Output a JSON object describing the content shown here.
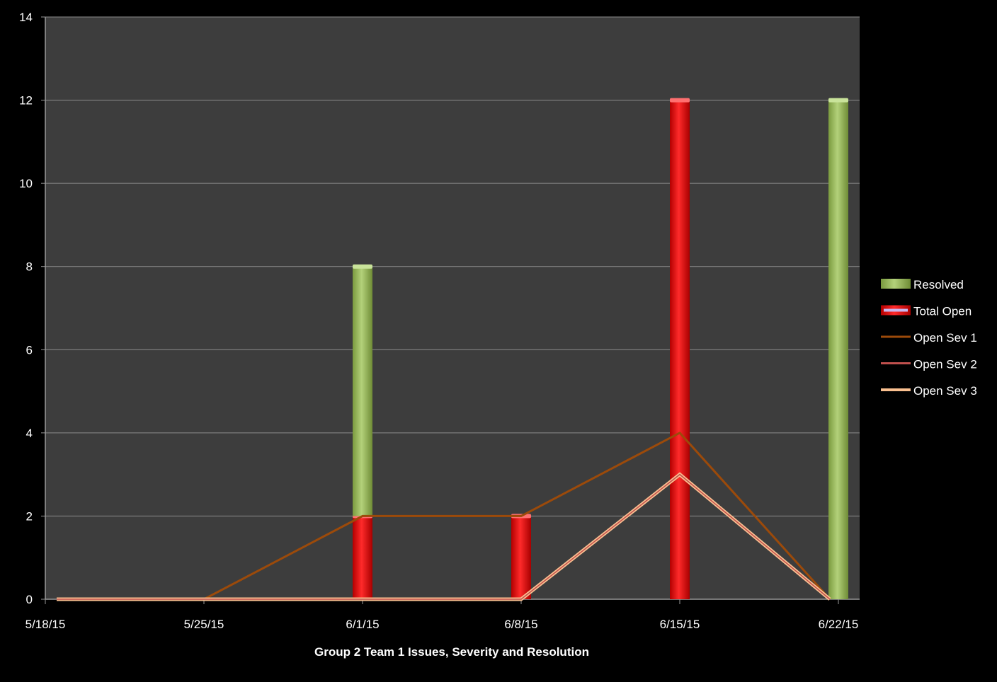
{
  "chart_data": {
    "type": "bar",
    "title": "",
    "xlabel": "Group 2 Team 1 Issues, Severity and Resolution",
    "ylabel": "",
    "ylim": [
      0,
      14
    ],
    "yticks": [
      "0",
      "2",
      "4",
      "6",
      "8",
      "10",
      "12",
      "14"
    ],
    "categories": [
      "5/18/15",
      "5/25/15",
      "6/1/15",
      "6/8/15",
      "6/15/15",
      "6/22/15"
    ],
    "grid": true,
    "legend_position": "right",
    "stacked": true,
    "series": [
      {
        "name": "Total Open",
        "kind": "bar",
        "color": "#ff1a1a",
        "values": [
          0,
          0,
          2,
          2,
          12,
          0
        ]
      },
      {
        "name": "Resolved",
        "kind": "bar",
        "color": "#9bbb59",
        "values": [
          0,
          0,
          6,
          0,
          0,
          12
        ]
      },
      {
        "name": "Open Sev 1",
        "kind": "line",
        "color": "#9c4a0a",
        "values": [
          0,
          0,
          2,
          2,
          4,
          0
        ]
      },
      {
        "name": "Open Sev 2",
        "kind": "line",
        "color": "#c0504d",
        "values": [
          0,
          0,
          0,
          0,
          3,
          0
        ]
      },
      {
        "name": "Open Sev 3",
        "kind": "line",
        "color": "#fac090",
        "values": [
          0,
          0,
          0,
          0,
          3,
          0
        ]
      }
    ],
    "legend_order": [
      "Resolved",
      "Total Open",
      "Open Sev 1",
      "Open Sev 2",
      "Open Sev 3"
    ]
  }
}
